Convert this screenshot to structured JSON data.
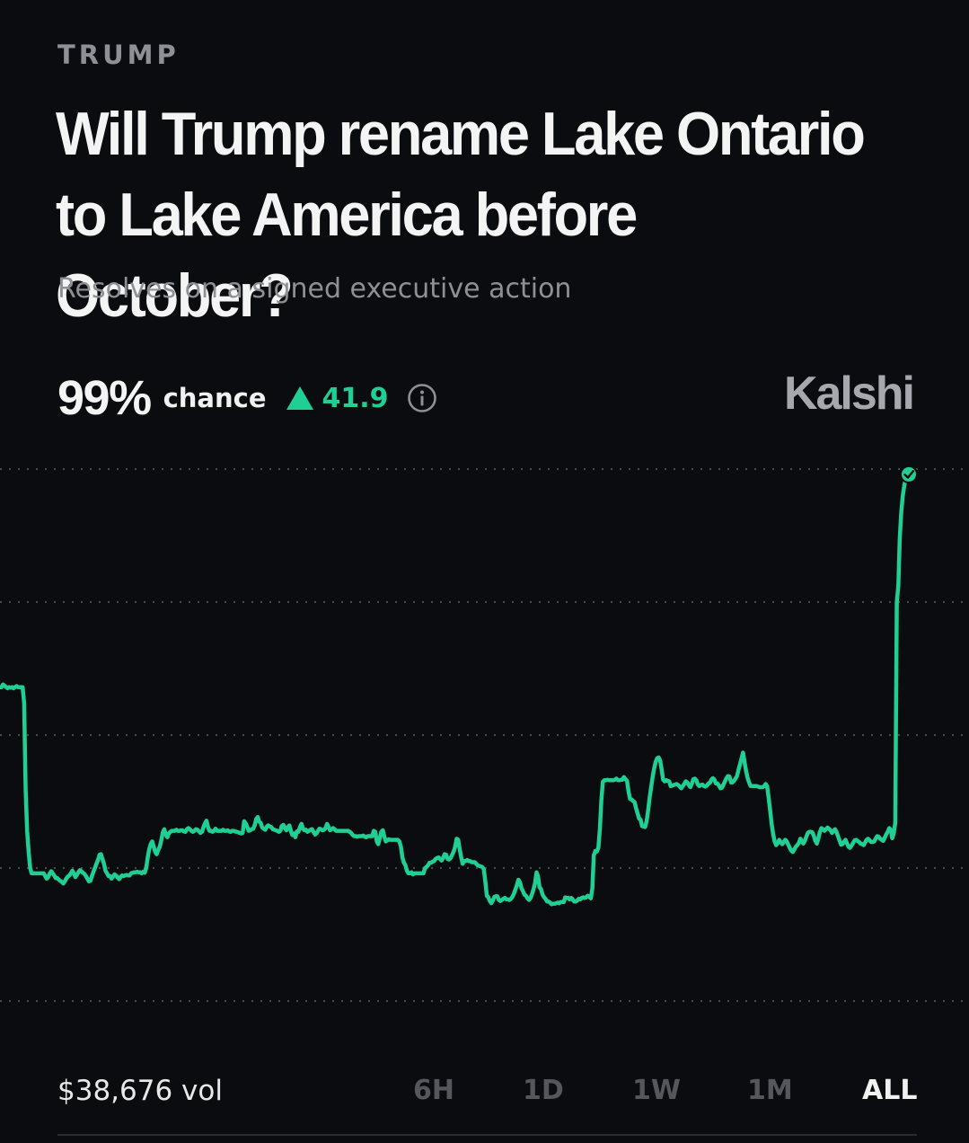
{
  "market": {
    "category": "TRUMP",
    "title": "Will Trump rename Lake Ontario to Lake America before October?",
    "subtitle": "Resolves on a signed executive action",
    "chance_value": "99%",
    "chance_label": "chance",
    "delta": "41.9",
    "brand": "Kalshi",
    "volume": "$38,676 vol"
  },
  "ranges": [
    {
      "label": "6H",
      "active": false
    },
    {
      "label": "1D",
      "active": false
    },
    {
      "label": "1W",
      "active": false
    },
    {
      "label": "1M",
      "active": false
    },
    {
      "label": "ALL",
      "active": true
    }
  ],
  "colors": {
    "background": "#0b0c0f",
    "line": "#1fcf93",
    "grid": "#4a4b50",
    "muted": "#8f9095"
  },
  "icons": {
    "delta": "triangle-up-icon",
    "info": "info-circle-icon",
    "endpoint": "check-circle-icon"
  },
  "chart_data": {
    "type": "line",
    "ylim": [
      0,
      100
    ],
    "grid": true,
    "gridlines": [
      0,
      25,
      50,
      75,
      100
    ],
    "series": [
      {
        "values": [
          59,
          59,
          59.5,
          59.3,
          59,
          58.8,
          59,
          58.9,
          59,
          58.8,
          59,
          59.2,
          59,
          59,
          59,
          59,
          56,
          40,
          32,
          28,
          25,
          24,
          24,
          24,
          24,
          24,
          24,
          24,
          24,
          24,
          23.5,
          23,
          23.3,
          24,
          24.4,
          24,
          23.6,
          23.1,
          23.1,
          22.8,
          22.6,
          22.4,
          22.1,
          22.5,
          23,
          23.4,
          23.6,
          24,
          24.5,
          24,
          23.3,
          23.7,
          24.2,
          24.6,
          24.4,
          24.1,
          23.9,
          23.5,
          23,
          22.5,
          22.6,
          23.5,
          24.3,
          25,
          25.8,
          26.5,
          27.5,
          27.6,
          26.7,
          25.8,
          24.5,
          24,
          23.5,
          23.5,
          23,
          23.4,
          23.8,
          23.6,
          23.2,
          22.9,
          23.3,
          23.6,
          23.5,
          23.6,
          23.7,
          23.6,
          23.6,
          24,
          24.1,
          24.2,
          24.2,
          24.3,
          24.2,
          24.2,
          24,
          24.3,
          24.1,
          25,
          27,
          28.5,
          29.5,
          30,
          29,
          28,
          27.6,
          28.4,
          29,
          30.2,
          31.7,
          32.3,
          31.3,
          30.8,
          31.5,
          31.8,
          32,
          32,
          32,
          32.2,
          32,
          32,
          32.1,
          32.1,
          31.9,
          31.8,
          32.3,
          32.5,
          32.3,
          32,
          31.8,
          32,
          32.3,
          32.2,
          31.9,
          31.6,
          31.8,
          32.7,
          33.4,
          33.9,
          32.7,
          32,
          32,
          31.8,
          32,
          32.4,
          32,
          32,
          32,
          32,
          32.2,
          32,
          32,
          32.1,
          31.9,
          31.8,
          32,
          32,
          31.9,
          31.8,
          31.7,
          31.6,
          31.5,
          31.6,
          33.8,
          33.4,
          32.8,
          32,
          32.1,
          32.3,
          32.4,
          33,
          34.2,
          34.6,
          33.7,
          33.5,
          32.6,
          32.4,
          32.2,
          32.8,
          33,
          32.8,
          32.7,
          32.3,
          32.2,
          32.1,
          32,
          31.8,
          32,
          32.9,
          33.1,
          32.5,
          32.1,
          32.7,
          33,
          32,
          31.2,
          31.5,
          30.8,
          31.9,
          31.8,
          32.7,
          33.3,
          32.4,
          32.1,
          32.2,
          31.8,
          32,
          32.2,
          32.3,
          31.8,
          31.3,
          31.5,
          32,
          32.4,
          32.3,
          32.1,
          32.2,
          32.5,
          33.3,
          32.7,
          32.1,
          32.3,
          32.5,
          32.3,
          32,
          32,
          32,
          32,
          32,
          32,
          32,
          32,
          32,
          31.8,
          31.6,
          31.2,
          31,
          31,
          30.9,
          31,
          31,
          31,
          31.1,
          30.9,
          30.8,
          31,
          31,
          31,
          31,
          32,
          31.8,
          30,
          29.5,
          30.6,
          31.8,
          32.1,
          30.9,
          30,
          30.2,
          30.4,
          30.3,
          30.3,
          30.3,
          30.3,
          30.3,
          30.3,
          30,
          29,
          27,
          26,
          25.5,
          24.5,
          24,
          24,
          24.2,
          23.8,
          24,
          24,
          24,
          24,
          24,
          24,
          24,
          25,
          25.2,
          25.5,
          26,
          26,
          26.2,
          26.3,
          26.7,
          26.9,
          27,
          26.7,
          26.4,
          26.9,
          27.6,
          27.5,
          26.7,
          26.6,
          26.9,
          27.5,
          28.1,
          29,
          30.5,
          30.3,
          28.5,
          27,
          25.8,
          26.3,
          26.3,
          26.5,
          26.3,
          26.3,
          26.1,
          26.1,
          26.1,
          25.8,
          25.5,
          25.4,
          25.3,
          25.2,
          24.8,
          22.5,
          19.8,
          19.5,
          18.8,
          18.4,
          18.9,
          19.6,
          19.7,
          19.7,
          19,
          18.8,
          19,
          19.2,
          19.4,
          19.1,
          19.1,
          19,
          19.2,
          19.6,
          20.2,
          21,
          21.8,
          22.8,
          22.3,
          21.2,
          20.6,
          20,
          19.8,
          19.3,
          19,
          19.4,
          20.1,
          21,
          22.2,
          24.2,
          23.4,
          21.4,
          21,
          20,
          19.5,
          19.2,
          18.7,
          18.7,
          18.5,
          18.2,
          18.3,
          18.3,
          18.4,
          18.5,
          18.4,
          18.6,
          18.6,
          18.6,
          19.5,
          19.4,
          19.4,
          19.1,
          19.4,
          19.1,
          18.7,
          18.7,
          18.9,
          19.2,
          19.1,
          19.4,
          19.5,
          19.4,
          19.5,
          19.8,
          19.6,
          19.3,
          21.2,
          27.4,
          28.2,
          28.1,
          28.8,
          32.4,
          37.7,
          41.2,
          41.5,
          41.5,
          41.6,
          41.5,
          41.5,
          41.5,
          41.5,
          41.6,
          41.8,
          41.5,
          41.5,
          41.6,
          41.6,
          42.1,
          41.7,
          41.4,
          39.5,
          38,
          37.9,
          37.6,
          37.4,
          36.3,
          35.3,
          34.3,
          34.1,
          32.9,
          32.8,
          32.7,
          33.8,
          35.8,
          38.1,
          40.1,
          42.1,
          43.7,
          44.9,
          45.6,
          45.8,
          45.2,
          43.5,
          41.6,
          41.3,
          41.5,
          41.4,
          41.3,
          40.4,
          40.5,
          40.6,
          40.7,
          40.8,
          40.6,
          40.3,
          40,
          40.4,
          40.8,
          41.3,
          41.1,
          40.6,
          40.2,
          40.8,
          41.7,
          41.8,
          41.5,
          40.7,
          40.4,
          40.6,
          40.7,
          40.4,
          40.3,
          40.5,
          40.9,
          41,
          41.6,
          41.9,
          41.6,
          40.9,
          40.9,
          40.5,
          40,
          40.1,
          40.7,
          41.3,
          41.9,
          42.3,
          42.2,
          41.1,
          41.1,
          41.4,
          41.8,
          42.3,
          43.5,
          44.5,
          45.6,
          46.7,
          44.9,
          43.3,
          42,
          41.1,
          40.4,
          40.4,
          40.4,
          40.4,
          40.4,
          40.3,
          40.2,
          40.2,
          40.2,
          40.4,
          40.8,
          40.4,
          38.2,
          35.8,
          33.2,
          31.3,
          30,
          29.3,
          29.7,
          30.3,
          29.9,
          29.5,
          29.9,
          30.3,
          30,
          29.4,
          28.8,
          28.3,
          28,
          28.5,
          29,
          29.3,
          29.7,
          30.5,
          30.1,
          29.6,
          30.1,
          30.9,
          31.6,
          31.8,
          31.8,
          31.7,
          31,
          30.1,
          29.6,
          30.6,
          31.8,
          32.5,
          32.3,
          32,
          32.3,
          32.6,
          32.4,
          32.1,
          31.6,
          32,
          32.3,
          31.8,
          31,
          30.2,
          29.4,
          29.5,
          29.9,
          30.3,
          29.6,
          29,
          28.8,
          29.2,
          29.7,
          30.2,
          30.3,
          30.1,
          29.9,
          29.6,
          29.5,
          29.3,
          29.8,
          30.3,
          30.5,
          30.2,
          29.9,
          29.9,
          30,
          30.5,
          31,
          30.9,
          30.5,
          30.3,
          30.1,
          30.7,
          31.3,
          31.8,
          32.5,
          32.2,
          30.6,
          31.5,
          33.5,
          75,
          78,
          87,
          92,
          95,
          97,
          98.2,
          98.8,
          99
        ]
      }
    ]
  }
}
